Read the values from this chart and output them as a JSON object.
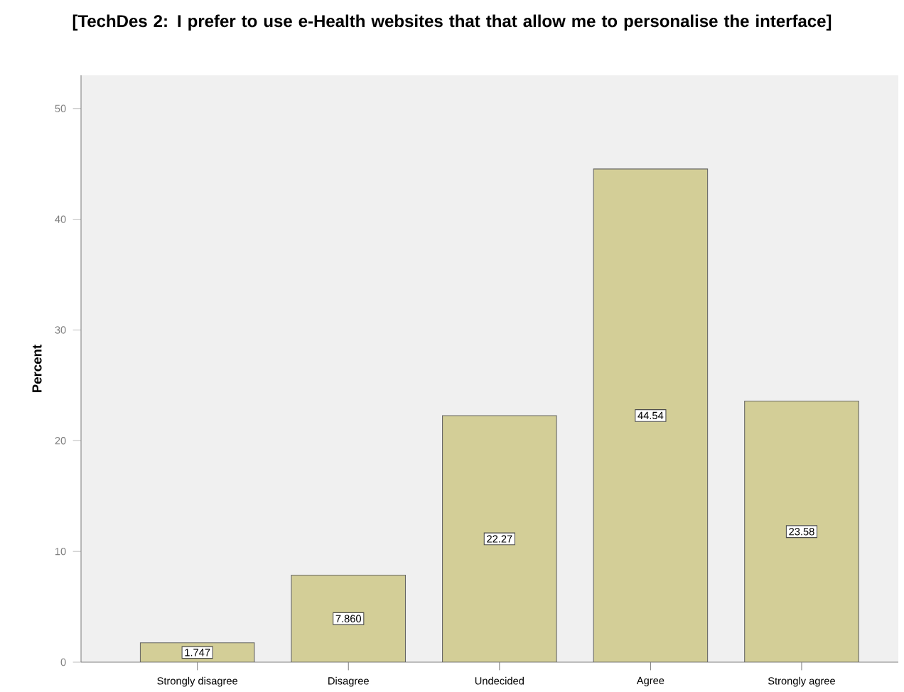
{
  "chart_data": {
    "type": "bar",
    "title": "[TechDes 2: I prefer to use e-Health websites that that allow me to personalise the interface]",
    "ylabel": "Percent",
    "categories": [
      "Strongly disagree",
      "Disagree",
      "Undecided",
      "Agree",
      "Strongly agree"
    ],
    "values": [
      1.747,
      7.86,
      22.27,
      44.54,
      23.58
    ],
    "value_labels": [
      "1.747",
      "7.860",
      "22.27",
      "44.54",
      "23.58"
    ],
    "color": "#d3ce97",
    "ylim": [
      0,
      53
    ],
    "yticks": [
      0,
      10,
      20,
      30,
      40,
      50
    ],
    "grid": false
  }
}
